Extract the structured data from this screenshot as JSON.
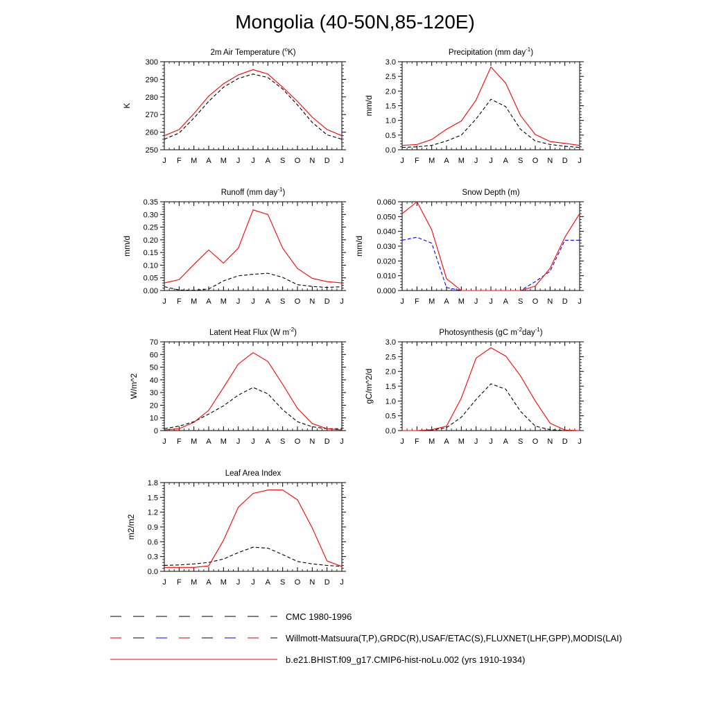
{
  "page": {
    "title": "Mongolia (40-50N,85-120E)"
  },
  "months": [
    "J",
    "F",
    "M",
    "A",
    "M",
    "J",
    "J",
    "A",
    "S",
    "O",
    "N",
    "D",
    "J"
  ],
  "legend": [
    {
      "label": "CMC 1980-1996",
      "style": "dashed",
      "colors": [
        "#000000"
      ]
    },
    {
      "label": "Willmott-Matsuura(T,P),GRDC(R),USAF/ETAC(S),FLUXNET(LHF,GPP),MODIS(LAI)",
      "style": "dashed",
      "colors": [
        "#cc0000",
        "#000000",
        "#0000ff"
      ]
    },
    {
      "label": "b.e21.BHIST.f09_g17.CMIP6-hist-noLu.002 (yrs 1910-1934)",
      "style": "solid",
      "colors": [
        "#ff0000"
      ]
    }
  ],
  "colors": {
    "model": "#ff0000",
    "obs": "#000000",
    "obs_snow": "#0000ff"
  },
  "chart_data": [
    {
      "type": "line",
      "title": "2m Air Temperature (",
      "title_sup": "o",
      "title_tail": "K)",
      "ylabel": "K",
      "ylim": [
        250,
        300
      ],
      "yticks": [
        "250",
        "260",
        "270",
        "280",
        "290",
        "300"
      ],
      "categories": [
        "J",
        "F",
        "M",
        "A",
        "M",
        "J",
        "J",
        "A",
        "S",
        "O",
        "N",
        "D",
        "J"
      ],
      "series": [
        {
          "role": "model",
          "style": "solid",
          "color": "#ff0000",
          "values": [
            258,
            261.5,
            270.5,
            280.5,
            287.5,
            292.5,
            295.5,
            293,
            285.5,
            277.5,
            268.5,
            261.5,
            258
          ]
        },
        {
          "role": "obs",
          "style": "dashed",
          "color": "#000000",
          "values": [
            256,
            259.5,
            268,
            277.5,
            285.5,
            290.5,
            293,
            291,
            284.5,
            275.5,
            265.5,
            258.5,
            256
          ]
        }
      ]
    },
    {
      "type": "line",
      "title": "Precipitation (mm day",
      "title_sup": "-1",
      "title_tail": ")",
      "ylabel": "mm/d",
      "ylim": [
        0,
        3.0
      ],
      "yticks": [
        "0.0",
        "0.5",
        "1.0",
        "1.5",
        "2.0",
        "2.5",
        "3.0"
      ],
      "categories": [
        "J",
        "F",
        "M",
        "A",
        "M",
        "J",
        "J",
        "A",
        "S",
        "O",
        "N",
        "D",
        "J"
      ],
      "series": [
        {
          "role": "model",
          "style": "solid",
          "color": "#ff0000",
          "values": [
            0.15,
            0.18,
            0.35,
            0.7,
            0.98,
            1.7,
            2.82,
            2.27,
            1.17,
            0.52,
            0.28,
            0.22,
            0.15
          ]
        },
        {
          "role": "obs",
          "style": "dashed",
          "color": "#000000",
          "values": [
            0.08,
            0.1,
            0.15,
            0.3,
            0.5,
            1.05,
            1.72,
            1.47,
            0.7,
            0.3,
            0.18,
            0.12,
            0.08
          ]
        }
      ]
    },
    {
      "type": "line",
      "title": "Runoff (mm day",
      "title_sup": "-1",
      "title_tail": ")",
      "ylabel": "mm/d",
      "ylim": [
        0,
        0.35
      ],
      "yticks": [
        "0.00",
        "0.05",
        "0.10",
        "0.15",
        "0.20",
        "0.25",
        "0.30",
        "0.35"
      ],
      "categories": [
        "J",
        "F",
        "M",
        "A",
        "M",
        "J",
        "J",
        "A",
        "S",
        "O",
        "N",
        "D",
        "J"
      ],
      "series": [
        {
          "role": "model",
          "style": "solid",
          "color": "#ff0000",
          "values": [
            0.03,
            0.043,
            0.103,
            0.16,
            0.108,
            0.167,
            0.318,
            0.3,
            0.167,
            0.087,
            0.048,
            0.035,
            0.03
          ]
        },
        {
          "role": "obs",
          "style": "dashed",
          "color": "#000000",
          "values": [
            0.015,
            0.002,
            0.001,
            0.006,
            0.038,
            0.058,
            0.064,
            0.068,
            0.052,
            0.023,
            0.016,
            0.012,
            0.015
          ]
        }
      ]
    },
    {
      "type": "line",
      "title": "Snow Depth (m)",
      "title_sup": "",
      "title_tail": "",
      "ylabel": "mm/d",
      "ylim": [
        0,
        0.06
      ],
      "yticks": [
        "0.000",
        "0.010",
        "0.020",
        "0.030",
        "0.040",
        "0.050",
        "0.060"
      ],
      "categories": [
        "J",
        "F",
        "M",
        "A",
        "M",
        "J",
        "J",
        "A",
        "S",
        "O",
        "N",
        "D",
        "J"
      ],
      "series": [
        {
          "role": "model",
          "style": "solid",
          "color": "#ff0000",
          "values": [
            0.052,
            0.06,
            0.041,
            0.008,
            0.0,
            0.0,
            0.0,
            0.0,
            0.0,
            0.003,
            0.015,
            0.036,
            0.052
          ]
        },
        {
          "role": "obs_snow",
          "style": "dashed",
          "color": "#0000ff",
          "values": [
            0.034,
            0.036,
            0.032,
            0.002,
            0.0,
            0.0,
            0.0,
            0.0,
            0.0,
            0.006,
            0.013,
            0.034,
            0.034
          ]
        },
        {
          "role": "obs",
          "style": "dashed",
          "color": "#000000",
          "values": [
            0,
            0,
            0,
            0,
            0,
            0,
            0,
            0,
            0,
            0,
            0,
            0,
            0
          ]
        }
      ]
    },
    {
      "type": "line",
      "title": "Latent Heat Flux (W m",
      "title_sup": "-2",
      "title_tail": ")",
      "ylabel": "W/m^2",
      "ylim": [
        0,
        70
      ],
      "yticks": [
        "0",
        "10",
        "20",
        "30",
        "40",
        "50",
        "60",
        "70"
      ],
      "categories": [
        "J",
        "F",
        "M",
        "A",
        "M",
        "J",
        "J",
        "A",
        "S",
        "O",
        "N",
        "D",
        "J"
      ],
      "series": [
        {
          "role": "model",
          "style": "solid",
          "color": "#ff0000",
          "values": [
            0.5,
            1.5,
            6.5,
            16,
            34,
            52.5,
            61.5,
            54.5,
            36.5,
            17.5,
            5.5,
            1.5,
            0.5
          ]
        },
        {
          "role": "obs",
          "style": "dashed",
          "color": "#000000",
          "values": [
            1.5,
            3.5,
            7,
            13,
            19.5,
            28,
            34,
            29,
            16.5,
            7,
            3,
            1.5,
            1.5
          ]
        }
      ]
    },
    {
      "type": "line",
      "title": "Photosynthesis (gC m",
      "title_sup": "-2",
      "title_tail": "day",
      "title_sup2": "-1",
      "title_tail2": ")",
      "ylabel": "gC/m^2/d",
      "ylim": [
        0,
        3.0
      ],
      "yticks": [
        "0.0",
        "0.5",
        "1.0",
        "1.5",
        "2.0",
        "2.5",
        "3.0"
      ],
      "categories": [
        "J",
        "F",
        "M",
        "A",
        "M",
        "J",
        "J",
        "A",
        "S",
        "O",
        "N",
        "D",
        "J"
      ],
      "series": [
        {
          "role": "model",
          "style": "solid",
          "color": "#ff0000",
          "values": [
            0.0,
            0.0,
            0.03,
            0.15,
            1.1,
            2.45,
            2.8,
            2.52,
            1.85,
            1.0,
            0.25,
            0.02,
            0.0
          ]
        },
        {
          "role": "obs",
          "style": "dashed",
          "color": "#000000",
          "values": [
            0.0,
            0.0,
            0.02,
            0.1,
            0.45,
            1.05,
            1.58,
            1.4,
            0.65,
            0.15,
            0.03,
            0.0,
            0.0
          ]
        }
      ]
    },
    {
      "type": "line",
      "title": "Leaf Area Index",
      "title_sup": "",
      "title_tail": "",
      "ylabel": "m2/m2",
      "ylim": [
        0,
        1.8
      ],
      "yticks": [
        "0.0",
        "0.3",
        "0.6",
        "0.9",
        "1.2",
        "1.5",
        "1.8"
      ],
      "categories": [
        "J",
        "F",
        "M",
        "A",
        "M",
        "J",
        "J",
        "A",
        "S",
        "O",
        "N",
        "D",
        "J"
      ],
      "series": [
        {
          "role": "model",
          "style": "solid",
          "color": "#ff0000",
          "values": [
            0.08,
            0.08,
            0.08,
            0.11,
            0.63,
            1.3,
            1.58,
            1.65,
            1.65,
            1.45,
            0.88,
            0.21,
            0.1
          ]
        },
        {
          "role": "obs",
          "style": "dashed",
          "color": "#000000",
          "values": [
            0.12,
            0.13,
            0.15,
            0.18,
            0.25,
            0.38,
            0.49,
            0.47,
            0.34,
            0.2,
            0.15,
            0.12,
            0.1
          ]
        }
      ]
    }
  ]
}
